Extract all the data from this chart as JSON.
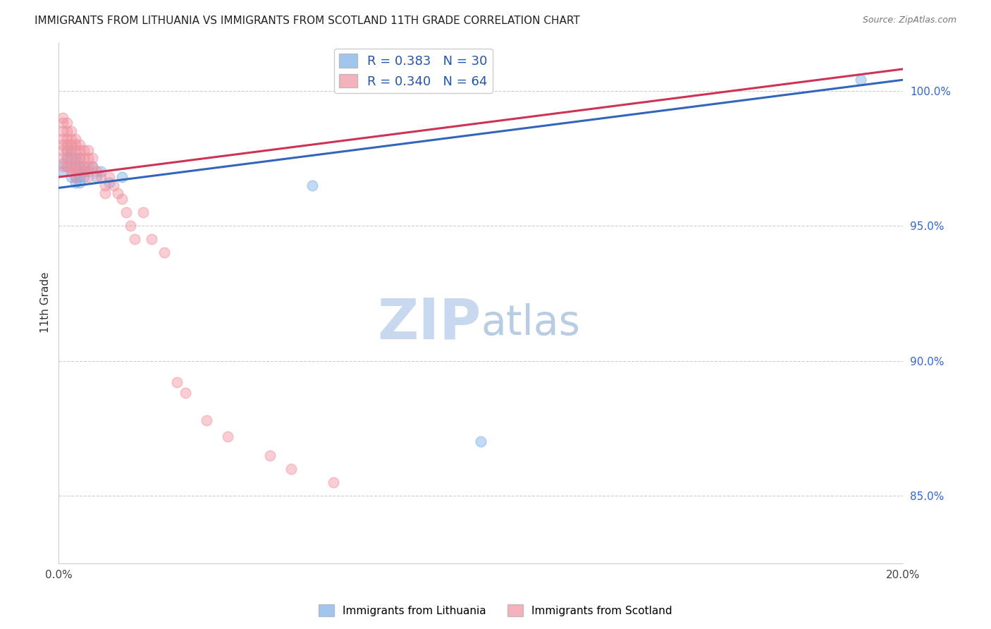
{
  "title": "IMMIGRANTS FROM LITHUANIA VS IMMIGRANTS FROM SCOTLAND 11TH GRADE CORRELATION CHART",
  "source": "Source: ZipAtlas.com",
  "ylabel": "11th Grade",
  "ylabel_right_labels": [
    "100.0%",
    "95.0%",
    "90.0%",
    "85.0%"
  ],
  "ylabel_right_values": [
    1.0,
    0.95,
    0.9,
    0.85
  ],
  "xlim": [
    0.0,
    0.2
  ],
  "ylim": [
    0.825,
    1.018
  ],
  "legend_blue_label": "R = 0.383   N = 30",
  "legend_pink_label": "R = 0.340   N = 64",
  "legend_label1": "Immigrants from Lithuania",
  "legend_label2": "Immigrants from Scotland",
  "blue_color": "#7AAEE8",
  "pink_color": "#F093A0",
  "blue_line_color": "#3366BB",
  "pink_line_color": "#CC3355",
  "watermark_zip": "ZIP",
  "watermark_atlas": "atlas",
  "watermark_color_zip": "#C8D8EE",
  "watermark_color_atlas": "#B8CCE4",
  "grid_color": "#CCCCCC",
  "blue_scatter_x": [
    0.001,
    0.001,
    0.002,
    0.002,
    0.002,
    0.003,
    0.003,
    0.003,
    0.003,
    0.004,
    0.004,
    0.004,
    0.004,
    0.005,
    0.005,
    0.005,
    0.005,
    0.005,
    0.006,
    0.006,
    0.006,
    0.007,
    0.008,
    0.009,
    0.01,
    0.012,
    0.015,
    0.06,
    0.1,
    0.19
  ],
  "blue_scatter_y": [
    0.973,
    0.97,
    0.978,
    0.975,
    0.972,
    0.978,
    0.975,
    0.972,
    0.968,
    0.975,
    0.972,
    0.968,
    0.966,
    0.975,
    0.972,
    0.97,
    0.968,
    0.966,
    0.972,
    0.97,
    0.968,
    0.97,
    0.972,
    0.968,
    0.97,
    0.966,
    0.968,
    0.965,
    0.87,
    1.004
  ],
  "pink_scatter_x": [
    0.001,
    0.001,
    0.001,
    0.001,
    0.001,
    0.001,
    0.001,
    0.001,
    0.002,
    0.002,
    0.002,
    0.002,
    0.002,
    0.002,
    0.002,
    0.003,
    0.003,
    0.003,
    0.003,
    0.003,
    0.003,
    0.003,
    0.004,
    0.004,
    0.004,
    0.004,
    0.004,
    0.004,
    0.004,
    0.005,
    0.005,
    0.005,
    0.005,
    0.006,
    0.006,
    0.006,
    0.006,
    0.007,
    0.007,
    0.007,
    0.007,
    0.008,
    0.008,
    0.009,
    0.01,
    0.011,
    0.011,
    0.012,
    0.013,
    0.014,
    0.015,
    0.016,
    0.017,
    0.018,
    0.02,
    0.022,
    0.025,
    0.028,
    0.03,
    0.035,
    0.04,
    0.05,
    0.055,
    0.065
  ],
  "pink_scatter_y": [
    0.99,
    0.988,
    0.985,
    0.982,
    0.98,
    0.978,
    0.975,
    0.972,
    0.988,
    0.985,
    0.982,
    0.98,
    0.978,
    0.975,
    0.972,
    0.985,
    0.982,
    0.98,
    0.978,
    0.975,
    0.972,
    0.97,
    0.982,
    0.98,
    0.978,
    0.975,
    0.972,
    0.97,
    0.968,
    0.98,
    0.978,
    0.975,
    0.972,
    0.978,
    0.975,
    0.972,
    0.97,
    0.978,
    0.975,
    0.972,
    0.968,
    0.975,
    0.972,
    0.97,
    0.968,
    0.965,
    0.962,
    0.968,
    0.965,
    0.962,
    0.96,
    0.955,
    0.95,
    0.945,
    0.955,
    0.945,
    0.94,
    0.892,
    0.888,
    0.878,
    0.872,
    0.865,
    0.86,
    0.855
  ],
  "blue_trend_x": [
    0.0,
    0.2
  ],
  "blue_trend_y": [
    0.964,
    1.004
  ],
  "pink_trend_x": [
    0.0,
    0.08
  ],
  "pink_trend_y": [
    0.968,
    0.999
  ],
  "dot_size": 110,
  "dot_alpha": 0.45
}
